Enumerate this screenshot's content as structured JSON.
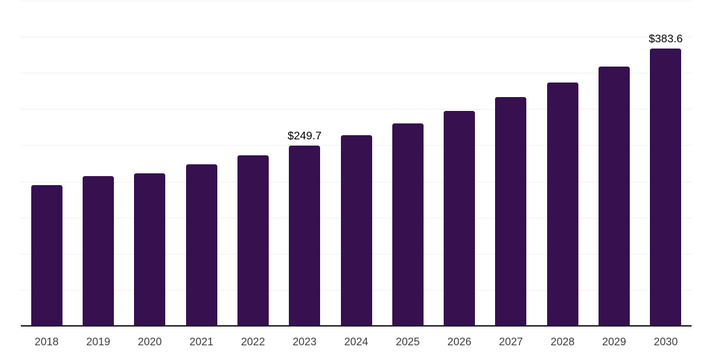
{
  "chart_data": {
    "type": "bar",
    "title": "",
    "xlabel": "",
    "ylabel": "",
    "categories": [
      "2018",
      "2019",
      "2020",
      "2021",
      "2022",
      "2023",
      "2024",
      "2025",
      "2026",
      "2027",
      "2028",
      "2029",
      "2030"
    ],
    "values": [
      194.8,
      207.2,
      211.3,
      223.9,
      236.4,
      249.7,
      264.1,
      280.0,
      297.7,
      316.9,
      336.8,
      359.0,
      383.6
    ],
    "data_labels": {
      "2023": "$249.7",
      "2030": "$383.6"
    },
    "ylim": [
      0,
      450
    ],
    "grid_step": 50,
    "grid": true,
    "legend": false,
    "y_axis_labels_visible": false,
    "colors": {
      "bar": "#36104f",
      "grid": "#f2f2f2",
      "axis": "#1f1d26",
      "tick_label": "#3a3a3a",
      "data_label": "#000000"
    }
  }
}
